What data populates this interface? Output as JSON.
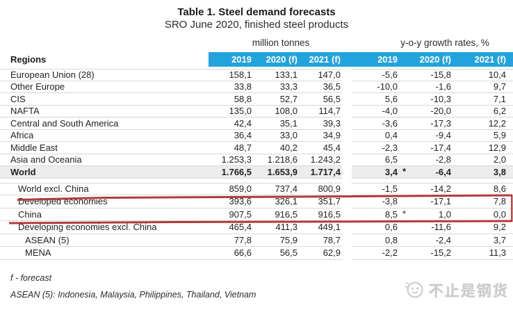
{
  "title": "Table 1. Steel demand forecasts",
  "subtitle": "SRO June 2020, finished steel products",
  "colors": {
    "header_blue": "#23a3dd",
    "row_shade": "#ececec",
    "separator_gray": "#d8d8d8",
    "annotation_red": "#b33a3a"
  },
  "table": {
    "regions_header": "Regions",
    "group_headers": {
      "tonnes": "million tonnes",
      "growth": "y-o-y growth rates, %"
    },
    "col_headers": [
      "2019",
      "2020 (f)",
      "2021 (f)",
      "2019",
      "2020 (f)",
      "2021 (f)"
    ],
    "rows": [
      {
        "label": "European Union (28)",
        "indent": 0,
        "bold": false,
        "shaded": false,
        "section": "main",
        "asterisk": false,
        "values": [
          "158,1",
          "133,1",
          "147,0",
          "-5,6",
          "-15,8",
          "10,4"
        ]
      },
      {
        "label": "Other Europe",
        "indent": 0,
        "bold": false,
        "shaded": false,
        "section": "main",
        "asterisk": false,
        "values": [
          "33,8",
          "33,3",
          "36,5",
          "-10,0",
          "-1,6",
          "9,7"
        ]
      },
      {
        "label": "CIS",
        "indent": 0,
        "bold": false,
        "shaded": false,
        "section": "main",
        "asterisk": false,
        "values": [
          "58,8",
          "52,7",
          "56,5",
          "5,6",
          "-10,3",
          "7,1"
        ]
      },
      {
        "label": "NAFTA",
        "indent": 0,
        "bold": false,
        "shaded": false,
        "section": "main",
        "asterisk": false,
        "values": [
          "135,0",
          "108,0",
          "114,7",
          "-4,0",
          "-20,0",
          "6,2"
        ]
      },
      {
        "label": "Central and South America",
        "indent": 0,
        "bold": false,
        "shaded": false,
        "section": "main",
        "asterisk": false,
        "values": [
          "42,4",
          "35,1",
          "39,3",
          "-3,6",
          "-17,3",
          "12,2"
        ]
      },
      {
        "label": "Africa",
        "indent": 0,
        "bold": false,
        "shaded": false,
        "section": "main",
        "asterisk": false,
        "values": [
          "36,4",
          "33,0",
          "34,9",
          "0,4",
          "-9,4",
          "5,9"
        ]
      },
      {
        "label": "Middle East",
        "indent": 0,
        "bold": false,
        "shaded": false,
        "section": "main",
        "asterisk": false,
        "values": [
          "48,7",
          "40,2",
          "45,4",
          "-2,3",
          "-17,4",
          "12,9"
        ]
      },
      {
        "label": "Asia and Oceania",
        "indent": 0,
        "bold": false,
        "shaded": false,
        "section": "main",
        "asterisk": false,
        "values": [
          "1.253,3",
          "1.218,6",
          "1.243,2",
          "6,5",
          "-2,8",
          "2,0"
        ]
      },
      {
        "label": "World",
        "indent": 0,
        "bold": true,
        "shaded": true,
        "section": "main",
        "asterisk": true,
        "values": [
          "1.766,5",
          "1.653,9",
          "1.717,4",
          "3,4",
          "-6,4",
          "3,8"
        ]
      },
      {
        "label": "World excl. China",
        "indent": 1,
        "bold": false,
        "shaded": false,
        "section": "sub",
        "asterisk": false,
        "values": [
          "859,0",
          "737,4",
          "800,9",
          "-1,5",
          "-14,2",
          "8,6"
        ]
      },
      {
        "label": "Developed economies",
        "indent": 1,
        "bold": false,
        "shaded": false,
        "section": "sub",
        "asterisk": false,
        "values": [
          "393,6",
          "326,1",
          "351,7",
          "-3,8",
          "-17,1",
          "7,8"
        ]
      },
      {
        "label": "China",
        "indent": 1,
        "bold": false,
        "shaded": false,
        "section": "sub",
        "asterisk": true,
        "values": [
          "907,5",
          "916,5",
          "916,5",
          "8,5",
          "1,0",
          "0,0"
        ]
      },
      {
        "label": "Developing economies excl. China",
        "indent": 1,
        "bold": false,
        "shaded": false,
        "section": "sub",
        "asterisk": false,
        "values": [
          "465,4",
          "411,3",
          "449,1",
          "0,6",
          "-11,6",
          "9,2"
        ]
      },
      {
        "label": "ASEAN (5)",
        "indent": 2,
        "bold": false,
        "shaded": false,
        "section": "sub",
        "asterisk": false,
        "values": [
          "77,8",
          "75,9",
          "78,7",
          "0,8",
          "-2,4",
          "3,7"
        ]
      },
      {
        "label": "MENA",
        "indent": 2,
        "bold": false,
        "shaded": false,
        "section": "sub",
        "asterisk": false,
        "values": [
          "66,6",
          "56,5",
          "62,9",
          "-2,2",
          "-15,2",
          "11,3"
        ]
      }
    ]
  },
  "chart_data": {
    "type": "table",
    "title": "Table 1. Steel demand forecasts",
    "subtitle": "SRO June 2020, finished steel products",
    "column_groups": [
      "million tonnes",
      "y-o-y growth rates, %"
    ],
    "columns": [
      "2019",
      "2020 (f)",
      "2021 (f)",
      "2019",
      "2020 (f)",
      "2021 (f)"
    ],
    "annotated_rows_red_underline": [
      "World excl. China",
      "China"
    ]
  },
  "footnotes": {
    "forecast": "f - forecast",
    "asean": "ASEAN (5): Indonesia, Malaysia, Philippines, Thailand, Vietnam"
  },
  "watermark": {
    "text": "不止是钢货"
  }
}
